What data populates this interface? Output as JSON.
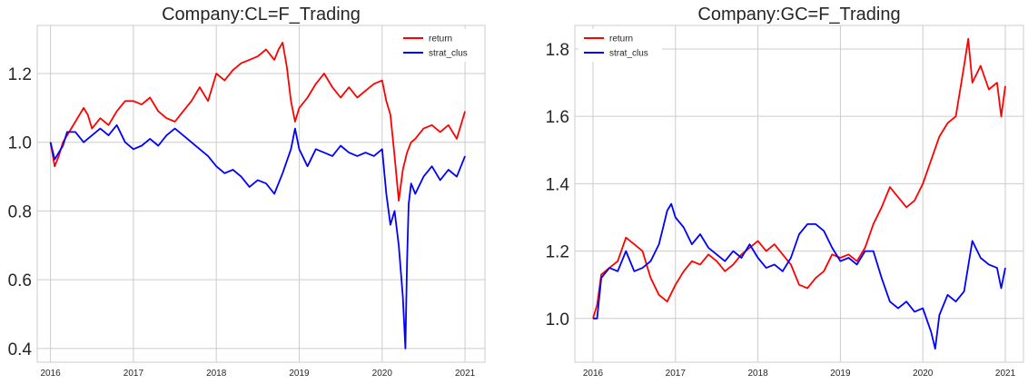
{
  "colors": {
    "return": "#ff0000",
    "strat_clus": "#0000ff"
  },
  "chart_data": [
    {
      "type": "line",
      "title": "Company:CL=F_Trading",
      "xlabel": "",
      "ylabel": "",
      "xlim": [
        2015.84,
        2021.24
      ],
      "ylim": [
        0.36,
        1.34
      ],
      "x_ticks": [
        2016,
        2017,
        2018,
        2019,
        2020,
        2021
      ],
      "y_ticks": [
        0.4,
        0.6,
        0.8,
        1.0,
        1.2
      ],
      "y_tick_labels": [
        "0.4",
        "0.6",
        "0.8",
        "1.0",
        "1.2"
      ],
      "legend_position": "top-right",
      "grid": true,
      "series": [
        {
          "name": "return",
          "color": "#ff0000",
          "x": [
            2016.0,
            2016.05,
            2016.1,
            2016.15,
            2016.2,
            2016.3,
            2016.4,
            2016.45,
            2016.5,
            2016.6,
            2016.7,
            2016.8,
            2016.9,
            2017.0,
            2017.1,
            2017.2,
            2017.3,
            2017.4,
            2017.5,
            2017.6,
            2017.7,
            2017.8,
            2017.9,
            2018.0,
            2018.1,
            2018.2,
            2018.3,
            2018.4,
            2018.5,
            2018.6,
            2018.7,
            2018.75,
            2018.8,
            2018.85,
            2018.9,
            2018.95,
            2019.0,
            2019.1,
            2019.2,
            2019.3,
            2019.4,
            2019.5,
            2019.6,
            2019.7,
            2019.8,
            2019.9,
            2020.0,
            2020.05,
            2020.1,
            2020.15,
            2020.2,
            2020.25,
            2020.3,
            2020.35,
            2020.4,
            2020.5,
            2020.6,
            2020.7,
            2020.8,
            2020.9,
            2021.0
          ],
          "y": [
            1.0,
            0.93,
            0.96,
            1.0,
            1.02,
            1.06,
            1.1,
            1.08,
            1.04,
            1.07,
            1.05,
            1.09,
            1.12,
            1.12,
            1.11,
            1.13,
            1.09,
            1.07,
            1.06,
            1.09,
            1.12,
            1.16,
            1.12,
            1.2,
            1.18,
            1.21,
            1.23,
            1.24,
            1.25,
            1.27,
            1.24,
            1.27,
            1.29,
            1.22,
            1.12,
            1.06,
            1.1,
            1.13,
            1.17,
            1.2,
            1.16,
            1.13,
            1.16,
            1.13,
            1.15,
            1.17,
            1.18,
            1.12,
            1.08,
            0.96,
            0.83,
            0.92,
            0.97,
            1.0,
            1.01,
            1.04,
            1.05,
            1.03,
            1.05,
            1.01,
            1.09
          ]
        },
        {
          "name": "strat_clus",
          "color": "#0000ff",
          "x": [
            2016.0,
            2016.05,
            2016.1,
            2016.15,
            2016.2,
            2016.3,
            2016.4,
            2016.5,
            2016.6,
            2016.7,
            2016.8,
            2016.9,
            2017.0,
            2017.1,
            2017.2,
            2017.3,
            2017.4,
            2017.5,
            2017.6,
            2017.7,
            2017.8,
            2017.9,
            2018.0,
            2018.1,
            2018.2,
            2018.3,
            2018.4,
            2018.5,
            2018.6,
            2018.7,
            2018.8,
            2018.9,
            2018.95,
            2019.0,
            2019.1,
            2019.2,
            2019.3,
            2019.4,
            2019.5,
            2019.6,
            2019.7,
            2019.8,
            2019.9,
            2020.0,
            2020.05,
            2020.1,
            2020.15,
            2020.2,
            2020.25,
            2020.28,
            2020.3,
            2020.32,
            2020.35,
            2020.4,
            2020.5,
            2020.6,
            2020.7,
            2020.8,
            2020.9,
            2021.0
          ],
          "y": [
            1.0,
            0.95,
            0.97,
            0.99,
            1.03,
            1.03,
            1.0,
            1.02,
            1.04,
            1.02,
            1.05,
            1.0,
            0.98,
            0.99,
            1.01,
            0.99,
            1.02,
            1.04,
            1.02,
            1.0,
            0.98,
            0.96,
            0.93,
            0.91,
            0.92,
            0.9,
            0.87,
            0.89,
            0.88,
            0.85,
            0.91,
            0.98,
            1.04,
            0.98,
            0.93,
            0.98,
            0.97,
            0.96,
            0.99,
            0.97,
            0.96,
            0.97,
            0.96,
            0.98,
            0.85,
            0.76,
            0.8,
            0.7,
            0.55,
            0.4,
            0.65,
            0.82,
            0.88,
            0.85,
            0.9,
            0.93,
            0.89,
            0.92,
            0.9,
            0.96
          ]
        }
      ]
    },
    {
      "type": "line",
      "title": "Company:GC=F_Trading",
      "xlabel": "",
      "ylabel": "",
      "xlim": [
        2015.78,
        2021.22
      ],
      "ylim": [
        0.87,
        1.87
      ],
      "x_ticks": [
        2016,
        2017,
        2018,
        2019,
        2020,
        2021
      ],
      "y_ticks": [
        1.0,
        1.2,
        1.4,
        1.6,
        1.8
      ],
      "y_tick_labels": [
        "1.0",
        "1.2",
        "1.4",
        "1.6",
        "1.8"
      ],
      "legend_position": "top-left",
      "grid": true,
      "series": [
        {
          "name": "return",
          "color": "#ff0000",
          "x": [
            2016.0,
            2016.05,
            2016.1,
            2016.2,
            2016.3,
            2016.4,
            2016.5,
            2016.6,
            2016.7,
            2016.8,
            2016.9,
            2017.0,
            2017.1,
            2017.2,
            2017.3,
            2017.4,
            2017.5,
            2017.6,
            2017.7,
            2017.8,
            2017.9,
            2018.0,
            2018.1,
            2018.2,
            2018.3,
            2018.4,
            2018.5,
            2018.6,
            2018.7,
            2018.8,
            2018.9,
            2019.0,
            2019.1,
            2019.2,
            2019.3,
            2019.4,
            2019.5,
            2019.6,
            2019.7,
            2019.8,
            2019.9,
            2020.0,
            2020.1,
            2020.2,
            2020.3,
            2020.4,
            2020.5,
            2020.55,
            2020.6,
            2020.7,
            2020.8,
            2020.9,
            2020.95,
            2021.0
          ],
          "y": [
            1.0,
            1.04,
            1.13,
            1.15,
            1.17,
            1.24,
            1.22,
            1.2,
            1.12,
            1.07,
            1.05,
            1.1,
            1.14,
            1.17,
            1.16,
            1.19,
            1.17,
            1.14,
            1.16,
            1.19,
            1.21,
            1.23,
            1.2,
            1.22,
            1.19,
            1.16,
            1.1,
            1.09,
            1.12,
            1.14,
            1.19,
            1.18,
            1.19,
            1.17,
            1.21,
            1.28,
            1.33,
            1.39,
            1.36,
            1.33,
            1.35,
            1.4,
            1.47,
            1.54,
            1.58,
            1.6,
            1.75,
            1.83,
            1.7,
            1.75,
            1.68,
            1.7,
            1.6,
            1.69
          ]
        },
        {
          "name": "strat_clus",
          "color": "#0000ff",
          "x": [
            2016.0,
            2016.05,
            2016.1,
            2016.2,
            2016.3,
            2016.4,
            2016.5,
            2016.6,
            2016.7,
            2016.8,
            2016.85,
            2016.9,
            2016.95,
            2017.0,
            2017.1,
            2017.2,
            2017.3,
            2017.4,
            2017.5,
            2017.6,
            2017.7,
            2017.8,
            2017.9,
            2018.0,
            2018.1,
            2018.2,
            2018.3,
            2018.4,
            2018.5,
            2018.6,
            2018.7,
            2018.8,
            2018.9,
            2019.0,
            2019.1,
            2019.2,
            2019.3,
            2019.4,
            2019.5,
            2019.6,
            2019.7,
            2019.8,
            2019.9,
            2020.0,
            2020.1,
            2020.15,
            2020.2,
            2020.3,
            2020.4,
            2020.5,
            2020.6,
            2020.7,
            2020.8,
            2020.9,
            2020.95,
            2021.0
          ],
          "y": [
            1.0,
            1.0,
            1.12,
            1.15,
            1.14,
            1.2,
            1.14,
            1.15,
            1.17,
            1.22,
            1.27,
            1.32,
            1.34,
            1.3,
            1.27,
            1.22,
            1.25,
            1.21,
            1.19,
            1.17,
            1.2,
            1.18,
            1.22,
            1.18,
            1.15,
            1.16,
            1.14,
            1.18,
            1.25,
            1.28,
            1.28,
            1.26,
            1.21,
            1.17,
            1.18,
            1.16,
            1.2,
            1.2,
            1.12,
            1.05,
            1.03,
            1.05,
            1.02,
            1.03,
            0.96,
            0.91,
            1.01,
            1.07,
            1.05,
            1.08,
            1.23,
            1.18,
            1.16,
            1.15,
            1.09,
            1.15
          ]
        }
      ]
    }
  ]
}
